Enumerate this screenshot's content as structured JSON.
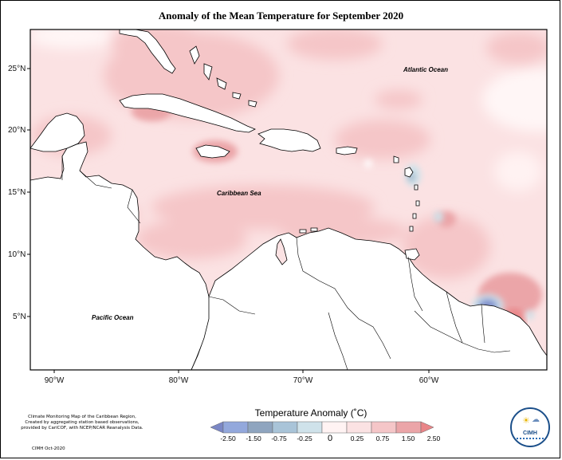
{
  "title": "Anomaly of the Mean Temperature for September 2020",
  "map": {
    "lon_ticks": [
      "90°W",
      "80°W",
      "70°W",
      "60°W"
    ],
    "lat_ticks": [
      "25°N",
      "20°N",
      "15°N",
      "10°N",
      "5°N"
    ],
    "oceans": {
      "atlantic": "Atlantic Ocean",
      "caribbean": "Caribbean Sea",
      "pacific": "Pacific Ocean"
    },
    "colors": {
      "land": "#ffffff",
      "anom_0_025": "#fbe2e3",
      "anom_025_075": "#f5c6c8",
      "anom_075_150": "#eba5a8",
      "anom_150_250": "#e98588",
      "anom_neg_025_0": "#cfe2ea",
      "anom_neg_075_025": "#a9c4d8",
      "anom_neg_150_075": "#93a8dc",
      "anom_neg_250_150": "#7b87c5"
    }
  },
  "colorbar": {
    "title": "Temperature Anomaly (˚C)",
    "labels": [
      "-2.50",
      "-1.50",
      "-0.75",
      "-0.25",
      "0",
      "0.25",
      "0.75",
      "1.50",
      "2.50"
    ],
    "colors": [
      "#7b87c5",
      "#93a8dc",
      "#8fa5bf",
      "#cfe2ea",
      "#fff3f3",
      "#fbe2e3",
      "#f5c6c8",
      "#eba5a8",
      "#e98588"
    ]
  },
  "credit": {
    "lines": [
      "Climate Monitoring Map of the Caribbean Region,",
      "Created by aggregating station based observations,",
      "provided by CariCOF, with NCEP/NCAR Reanalysis Data."
    ],
    "date": "CIMH Oct-2020"
  },
  "logo": {
    "text": "CIMH"
  }
}
